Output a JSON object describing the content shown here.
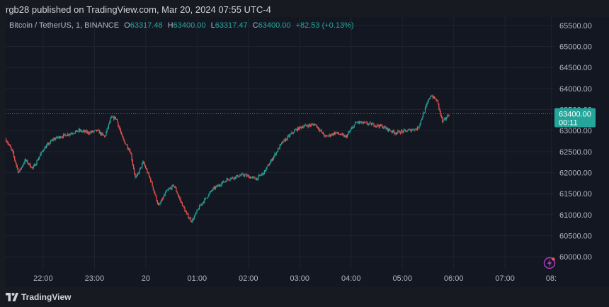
{
  "header": {
    "publisher_line": "rgb28 published on TradingView.com, Mar 20, 2024 07:55 UTC-4"
  },
  "legend": {
    "symbol": "Bitcoin / TetherUS, 1, BINANCE",
    "o_label": "O",
    "o_value": "63317.48",
    "h_label": "H",
    "h_value": "63400.00",
    "l_label": "L",
    "l_value": "63317.47",
    "c_label": "C",
    "c_value": "63400.00",
    "change": "+82.53 (+0.13%)"
  },
  "price_badge": {
    "price": "63400.00",
    "countdown": "00:11"
  },
  "footer": {
    "brand": "TradingView"
  },
  "colors": {
    "up": "#26a69a",
    "down": "#ef5350",
    "grid": "#1f2330",
    "text": "#b2b5be",
    "badge": "#26a69a"
  },
  "chart_data": {
    "type": "candlestick",
    "symbol": "BTCUSDT",
    "interval": "1",
    "y_tick_labels": [
      "65500.00",
      "65000.00",
      "64500.00",
      "64000.00",
      "63500.00",
      "63000.00",
      "62500.00",
      "62000.00",
      "61500.00",
      "61000.00",
      "60500.00",
      "60000.00"
    ],
    "y_ticks": [
      65500,
      65000,
      64500,
      64000,
      63500,
      63000,
      62500,
      62000,
      61500,
      61000,
      60500,
      60000
    ],
    "ylim": [
      59700,
      65700
    ],
    "x_tick_labels": [
      "22:00",
      "23:00",
      "20",
      "01:00",
      "02:00",
      "03:00",
      "04:00",
      "05:00",
      "06:00",
      "07:00",
      "08:"
    ],
    "x_ticks": [
      1.0,
      2.0,
      3.0,
      4.0,
      5.0,
      6.0,
      7.0,
      8.0,
      9.0,
      10.0,
      10.9
    ],
    "xlim": [
      0.27,
      10.95
    ],
    "last_price": 63400,
    "price_path": [
      [
        0.27,
        62800
      ],
      [
        0.4,
        62500
      ],
      [
        0.52,
        62000
      ],
      [
        0.65,
        62300
      ],
      [
        0.8,
        62100
      ],
      [
        1.0,
        62550
      ],
      [
        1.2,
        62800
      ],
      [
        1.45,
        62900
      ],
      [
        1.7,
        63000
      ],
      [
        1.9,
        62950
      ],
      [
        2.05,
        63000
      ],
      [
        2.2,
        62850
      ],
      [
        2.32,
        63300
      ],
      [
        2.42,
        63300
      ],
      [
        2.55,
        62800
      ],
      [
        2.7,
        62500
      ],
      [
        2.8,
        61850
      ],
      [
        2.95,
        62250
      ],
      [
        3.1,
        61800
      ],
      [
        3.25,
        61200
      ],
      [
        3.4,
        61550
      ],
      [
        3.55,
        61700
      ],
      [
        3.65,
        61400
      ],
      [
        3.8,
        61000
      ],
      [
        3.9,
        60850
      ],
      [
        4.05,
        61200
      ],
      [
        4.3,
        61600
      ],
      [
        4.6,
        61850
      ],
      [
        4.9,
        61950
      ],
      [
        5.15,
        61850
      ],
      [
        5.3,
        62000
      ],
      [
        5.5,
        62400
      ],
      [
        5.65,
        62700
      ],
      [
        5.9,
        63000
      ],
      [
        6.05,
        63100
      ],
      [
        6.3,
        63150
      ],
      [
        6.5,
        62850
      ],
      [
        6.7,
        62950
      ],
      [
        6.9,
        62850
      ],
      [
        7.1,
        63200
      ],
      [
        7.4,
        63150
      ],
      [
        7.6,
        63100
      ],
      [
        7.85,
        62950
      ],
      [
        8.1,
        63000
      ],
      [
        8.3,
        63050
      ],
      [
        8.55,
        63850
      ],
      [
        8.68,
        63700
      ],
      [
        8.78,
        63200
      ],
      [
        8.92,
        63400
      ]
    ]
  }
}
